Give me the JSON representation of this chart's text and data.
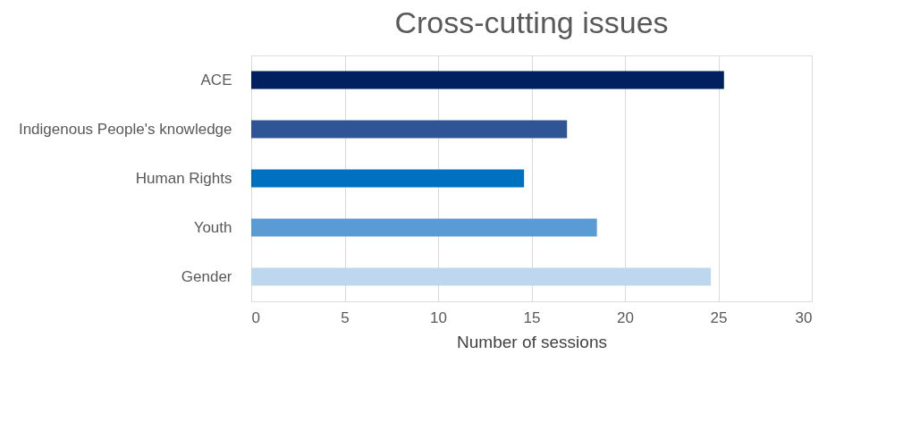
{
  "chart_data": {
    "type": "bar",
    "orientation": "horizontal",
    "title": "Cross-cutting issues",
    "xlabel": "Number of sessions",
    "categories": [
      "ACE",
      "Indigenous People's knowledge",
      "Human Rights",
      "Youth",
      "Gender"
    ],
    "values": [
      25.3,
      16.9,
      14.6,
      18.5,
      24.6
    ],
    "colors": [
      "#002060",
      "#2f5597",
      "#0070c0",
      "#5b9bd5",
      "#bdd7ee"
    ],
    "xlim": [
      0,
      30
    ],
    "xticks": [
      0,
      5,
      10,
      15,
      20,
      25,
      30
    ],
    "grid": "x",
    "legend": false
  }
}
